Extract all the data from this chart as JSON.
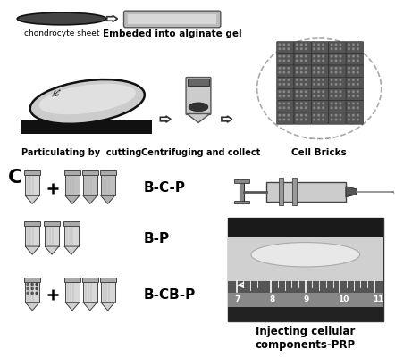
{
  "bg_color": "white",
  "top_section": {
    "chondrocyte_label": "chondrocyte sheet",
    "alginate_label": "Embeded into alginate gel",
    "cutting_label": "Particulating by  cutting",
    "centrifuge_label": "Centrifuging and collect",
    "bricks_label": "Cell Bricks"
  },
  "bottom_section": {
    "section_label": "C",
    "right_label": "Injecting cellular\ncomponents-PRP"
  },
  "colors": {
    "dark": "#222222",
    "medium": "#777777",
    "light": "#cccccc",
    "very_light": "#eeeeee",
    "white": "#ffffff",
    "tube_body": "#e0e0e0",
    "tube_cap": "#aaaaaa",
    "tube_filled": "#888888"
  }
}
